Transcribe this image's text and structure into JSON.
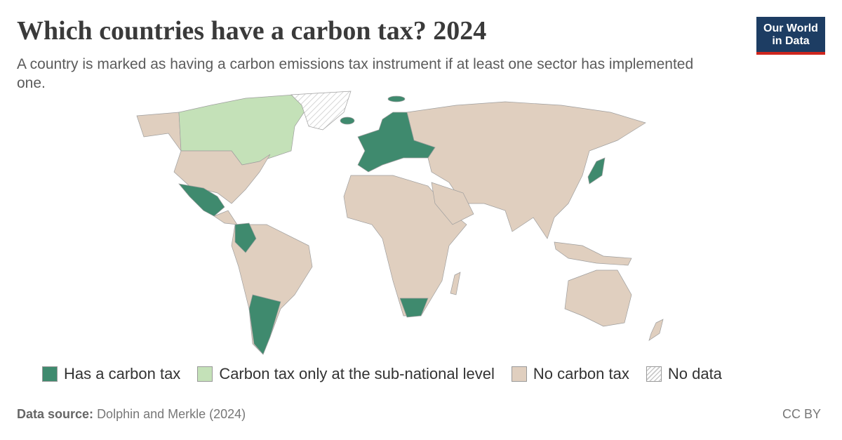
{
  "header": {
    "title": "Which countries have a carbon tax? 2024",
    "subtitle": "A country is marked as having a carbon emissions tax instrument if at least one sector has implemented one.",
    "logo": [
      "Our World",
      "in Data"
    ]
  },
  "legend": [
    {
      "label": "Has a carbon tax",
      "color": "#3f8a6e"
    },
    {
      "label": "Carbon tax only at the sub-national level",
      "color": "#c4e1b8"
    },
    {
      "label": "No carbon tax",
      "color": "#e0cfbf"
    },
    {
      "label": "No data",
      "color": "#c8c8c8"
    }
  ],
  "footer": {
    "source_label": "Data source:",
    "source": "Dolphin and Merkle (2024)",
    "license": "CC BY"
  }
}
